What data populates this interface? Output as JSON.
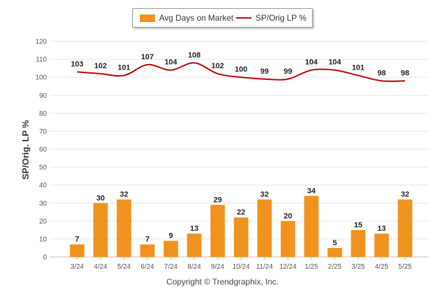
{
  "chart_data": {
    "type": "bar+line",
    "categories": [
      "3/24",
      "4/24",
      "5/24",
      "6/24",
      "7/24",
      "8/24",
      "9/24",
      "10/24",
      "11/24",
      "12/24",
      "1/25",
      "2/25",
      "3/25",
      "4/25",
      "5/25"
    ],
    "series": [
      {
        "name": "Avg Days on Market",
        "type": "bar",
        "color": "#f0931e",
        "values": [
          7,
          30,
          32,
          7,
          9,
          13,
          29,
          22,
          32,
          20,
          34,
          5,
          15,
          13,
          32
        ]
      },
      {
        "name": "SP/Orig LP %",
        "type": "line",
        "color": "#c00000",
        "values": [
          103,
          102,
          101,
          107,
          104,
          108,
          102,
          100,
          99,
          99,
          104,
          104,
          101,
          98,
          98
        ]
      }
    ],
    "ylabel": "SP/Orig. LP %",
    "ylim": [
      0,
      120
    ],
    "yticks": [
      0,
      10,
      20,
      30,
      40,
      50,
      60,
      70,
      80,
      90,
      100,
      110,
      120
    ],
    "grid": true,
    "legend_position": "top-center"
  },
  "legend": {
    "bar_label": "Avg Days on Market",
    "line_label": "SP/Orig LP %",
    "bar_color": "#f0931e",
    "line_color": "#c00000"
  },
  "copyright": "Copyright © Trendgraphix, Inc."
}
